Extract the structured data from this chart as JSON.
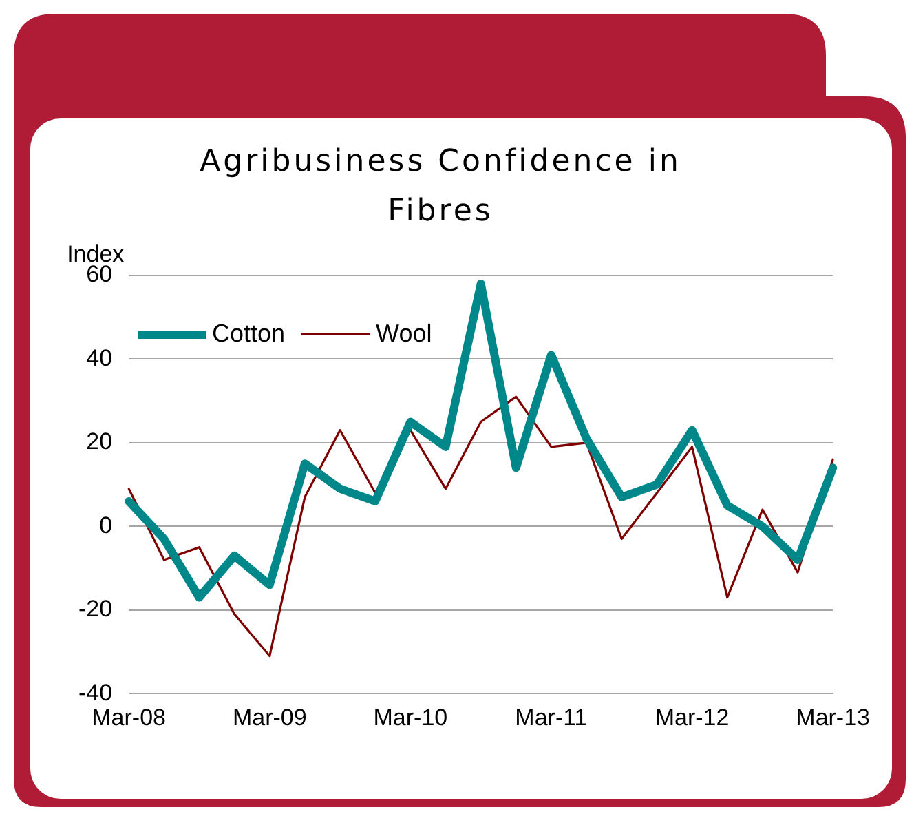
{
  "chart_data": {
    "type": "line",
    "title": "Agribusiness Confidence in Fibres",
    "ylabel": "Index",
    "categories": [
      "Mar-08",
      null,
      null,
      null,
      "Mar-09",
      null,
      null,
      null,
      "Mar-10",
      null,
      null,
      null,
      "Mar-11",
      null,
      null,
      null,
      "Mar-12",
      null,
      null,
      null,
      "Mar-13"
    ],
    "series": [
      {
        "name": "Cotton",
        "color": "#00878a",
        "values": [
          6,
          -3,
          -17,
          -7,
          -14,
          15,
          9,
          6,
          25,
          19,
          58,
          14,
          41,
          21,
          7,
          10,
          23,
          5,
          0,
          -8,
          14
        ]
      },
      {
        "name": "Wool",
        "color": "#7f0000",
        "values": [
          9,
          -8,
          -5,
          -21,
          -31,
          7,
          23,
          8,
          23,
          9,
          25,
          31,
          19,
          20,
          -3,
          null,
          19,
          -17,
          4,
          -11,
          16
        ]
      }
    ],
    "ylim": [
      -40,
      60
    ],
    "yticks": [
      -40,
      -20,
      0,
      20,
      40,
      60
    ],
    "grid": "y",
    "legend": "top left",
    "marker": "none",
    "line_style": "solid"
  }
}
